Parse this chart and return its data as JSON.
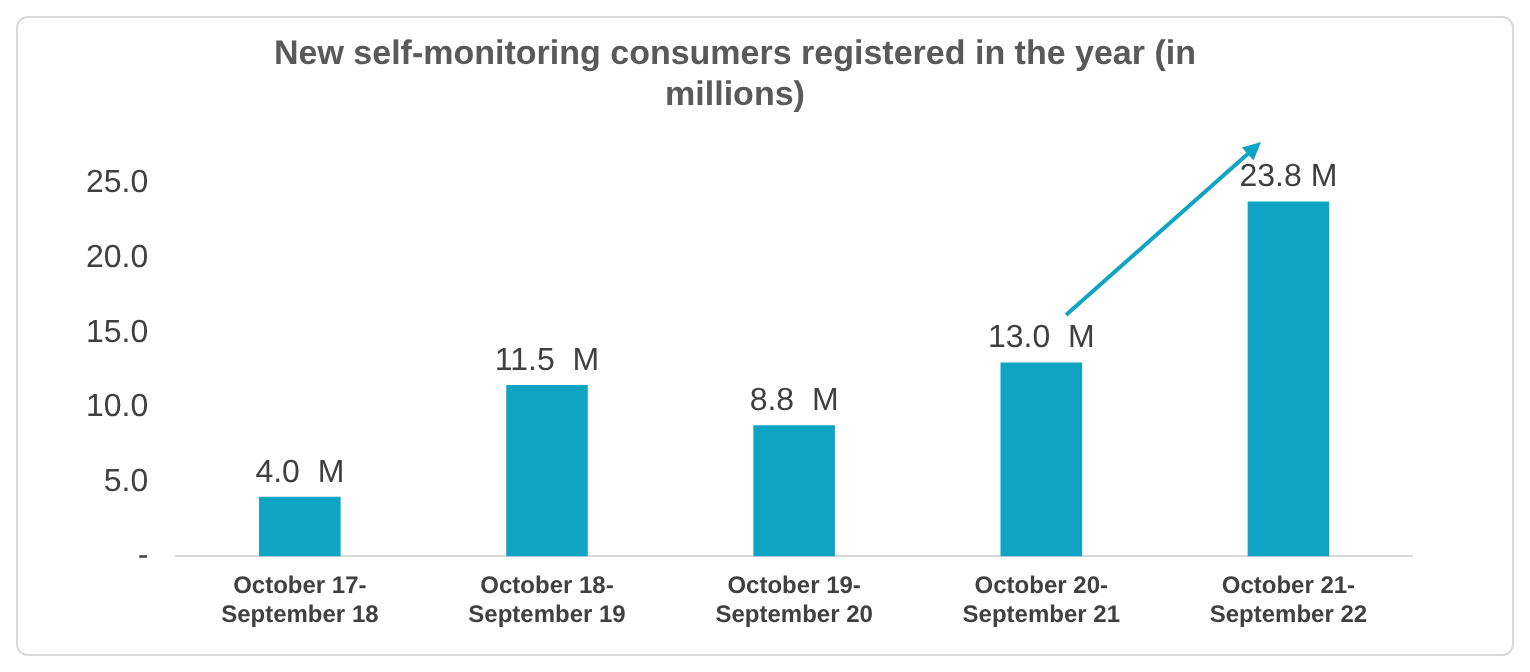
{
  "chart_data": {
    "type": "bar",
    "title": "New self-monitoring consumers registered in the year (in millions)",
    "categories": [
      "October 17-\nSeptember 18",
      "October 18-\nSeptember 19",
      "October 19-\nSeptember 20",
      "October 20-\nSeptember 21",
      "October 21-\nSeptember 22"
    ],
    "values": [
      4.0,
      11.5,
      8.8,
      13.0,
      23.8
    ],
    "value_labels": [
      "4.0  M",
      "11.5  M",
      "8.8  M",
      "13.0  M",
      "23.8 M"
    ],
    "color": "#0fa3c4",
    "ylim": [
      0,
      25
    ],
    "yticks": [
      {
        "value": 0,
        "label": "-"
      },
      {
        "value": 5,
        "label": "5.0"
      },
      {
        "value": 10,
        "label": "10.0"
      },
      {
        "value": 15,
        "label": "15.0"
      },
      {
        "value": 20,
        "label": "20.0"
      },
      {
        "value": 25,
        "label": "25.0"
      }
    ],
    "grid": false,
    "legend": false
  }
}
